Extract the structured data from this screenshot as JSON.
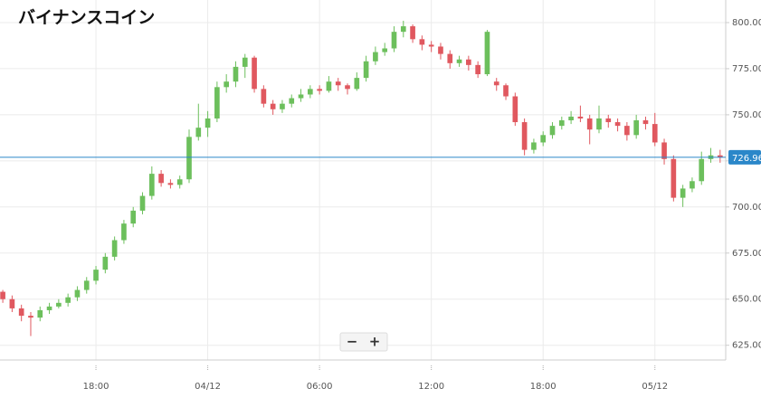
{
  "chart_data": {
    "type": "candlestick",
    "title": "バイナンスコイン",
    "up_color": "#6cbf5c",
    "down_color": "#e0585f",
    "line_color": "#2b87c9",
    "candles": [
      [
        654,
        655,
        648,
        650
      ],
      [
        650,
        652,
        643,
        645
      ],
      [
        645,
        647,
        638,
        641
      ],
      [
        641,
        643,
        630,
        640
      ],
      [
        640,
        646,
        638,
        644
      ],
      [
        644,
        648,
        642,
        646
      ],
      [
        646,
        650,
        645,
        648
      ],
      [
        648,
        653,
        646,
        651
      ],
      [
        651,
        657,
        649,
        655
      ],
      [
        655,
        662,
        653,
        660
      ],
      [
        660,
        668,
        658,
        666
      ],
      [
        666,
        675,
        664,
        673
      ],
      [
        673,
        684,
        671,
        682
      ],
      [
        682,
        693,
        680,
        691
      ],
      [
        691,
        700,
        689,
        698
      ],
      [
        698,
        708,
        696,
        706
      ],
      [
        706,
        722,
        704,
        718
      ],
      [
        718,
        720,
        711,
        713
      ],
      [
        713,
        715,
        710,
        712
      ],
      [
        712,
        717,
        710,
        715
      ],
      [
        715,
        742,
        713,
        738
      ],
      [
        738,
        756,
        736,
        743
      ],
      [
        743,
        752,
        738,
        748
      ],
      [
        748,
        768,
        746,
        765
      ],
      [
        765,
        772,
        762,
        768
      ],
      [
        768,
        779,
        765,
        776
      ],
      [
        776,
        783,
        770,
        781
      ],
      [
        781,
        782,
        762,
        764
      ],
      [
        764,
        766,
        754,
        756
      ],
      [
        756,
        758,
        750,
        753
      ],
      [
        753,
        758,
        751,
        756
      ],
      [
        756,
        761,
        754,
        759
      ],
      [
        759,
        764,
        757,
        761
      ],
      [
        761,
        766,
        759,
        764
      ],
      [
        764,
        766,
        761,
        763
      ],
      [
        763,
        771,
        762,
        768
      ],
      [
        768,
        770,
        763,
        766
      ],
      [
        766,
        767,
        761,
        764
      ],
      [
        764,
        773,
        763,
        770
      ],
      [
        770,
        782,
        768,
        779
      ],
      [
        779,
        787,
        777,
        784
      ],
      [
        784,
        789,
        782,
        786
      ],
      [
        786,
        798,
        784,
        795
      ],
      [
        795,
        801,
        792,
        798
      ],
      [
        798,
        799,
        789,
        791
      ],
      [
        791,
        793,
        785,
        788
      ],
      [
        788,
        790,
        784,
        787
      ],
      [
        787,
        789,
        780,
        783
      ],
      [
        783,
        785,
        775,
        778
      ],
      [
        778,
        782,
        776,
        780
      ],
      [
        780,
        782,
        774,
        777
      ],
      [
        777,
        779,
        770,
        772
      ],
      [
        772,
        796,
        771,
        795
      ],
      [
        768,
        770,
        763,
        766
      ],
      [
        766,
        767,
        758,
        760
      ],
      [
        760,
        762,
        744,
        746
      ],
      [
        746,
        748,
        728,
        731
      ],
      [
        731,
        737,
        729,
        735
      ],
      [
        735,
        741,
        733,
        739
      ],
      [
        739,
        746,
        737,
        744
      ],
      [
        744,
        749,
        742,
        747
      ],
      [
        747,
        752,
        745,
        749
      ],
      [
        749,
        755,
        746,
        748
      ],
      [
        748,
        750,
        734,
        742
      ],
      [
        742,
        755,
        740,
        748
      ],
      [
        748,
        750,
        743,
        746
      ],
      [
        746,
        748,
        741,
        744
      ],
      [
        744,
        746,
        736,
        739
      ],
      [
        739,
        750,
        737,
        747
      ],
      [
        747,
        749,
        742,
        745
      ],
      [
        745,
        751,
        733,
        735
      ],
      [
        735,
        737,
        723,
        726
      ],
      [
        726,
        728,
        703,
        705
      ],
      [
        705,
        712,
        700,
        710
      ],
      [
        710,
        716,
        708,
        714
      ],
      [
        714,
        730,
        712,
        726
      ],
      [
        726,
        732,
        724,
        728
      ],
      [
        728,
        731,
        724,
        726.96
      ]
    ],
    "last_price": 726.96,
    "xlim": [
      -0.3,
      77.6
    ],
    "xticks": [
      {
        "value": 10,
        "label": "18:00"
      },
      {
        "value": 22,
        "label": "04/12"
      },
      {
        "value": 34,
        "label": "06:00"
      },
      {
        "value": 46,
        "label": "12:00"
      },
      {
        "value": 58,
        "label": "18:00"
      },
      {
        "value": 70,
        "label": "05/12"
      }
    ],
    "ylim": [
      617,
      812.25
    ],
    "yticks": [
      {
        "value": 625,
        "label": "625.00"
      },
      {
        "value": 650,
        "label": "650.00"
      },
      {
        "value": 675,
        "label": "675.00"
      },
      {
        "value": 700,
        "label": "700.00"
      },
      {
        "value": 725,
        "label": "725.00"
      },
      {
        "value": 750,
        "label": "750.00"
      },
      {
        "value": 775,
        "label": "775.00"
      },
      {
        "value": 800,
        "label": "800.00"
      }
    ],
    "grid": true,
    "controls": [
      "−",
      "+"
    ]
  }
}
